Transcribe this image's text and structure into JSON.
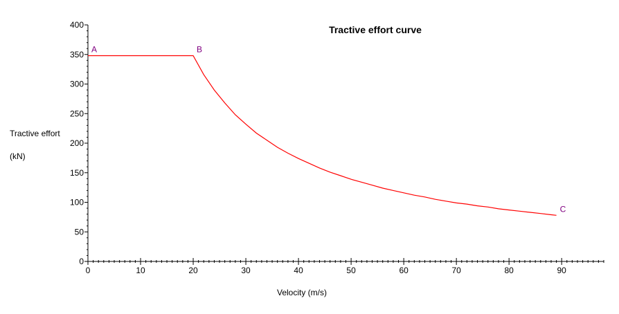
{
  "chart_data": {
    "type": "line",
    "title": "Tractive effort curve",
    "xlabel": "Velocity (m/s)",
    "ylabel_line1": "Tractive effort",
    "ylabel_line2": "(kN)",
    "xlim": [
      0,
      98
    ],
    "ylim": [
      0,
      400
    ],
    "x_ticks": [
      0,
      10,
      20,
      30,
      40,
      50,
      60,
      70,
      80,
      90
    ],
    "y_ticks": [
      0,
      50,
      100,
      150,
      200,
      250,
      300,
      350,
      400
    ],
    "x_minor_step": 1,
    "y_minor_step": 10,
    "grid": false,
    "legend": "none",
    "series": [
      {
        "color": "#ff0000",
        "x": [
          0,
          20,
          22,
          24,
          26,
          28,
          30,
          32,
          34,
          36,
          38,
          40,
          42,
          44,
          46,
          48,
          50,
          52,
          54,
          56,
          58,
          60,
          62,
          64,
          66,
          68,
          70,
          72,
          74,
          76,
          78,
          80,
          82,
          84,
          86,
          88,
          89
        ],
        "y": [
          348,
          348,
          316,
          290,
          268,
          248,
          232,
          217,
          205,
          193,
          183,
          174,
          166,
          158,
          151,
          145,
          139,
          134,
          129,
          124,
          120,
          116,
          112,
          109,
          105,
          102,
          99,
          97,
          94,
          92,
          89,
          87,
          85,
          83,
          81,
          79,
          78
        ]
      }
    ],
    "annotations": [
      {
        "text": "A",
        "x": 0,
        "y": 348,
        "color": "#800080"
      },
      {
        "text": "B",
        "x": 20,
        "y": 348,
        "color": "#800080"
      },
      {
        "text": "C",
        "x": 89,
        "y": 78,
        "color": "#800080"
      }
    ]
  }
}
